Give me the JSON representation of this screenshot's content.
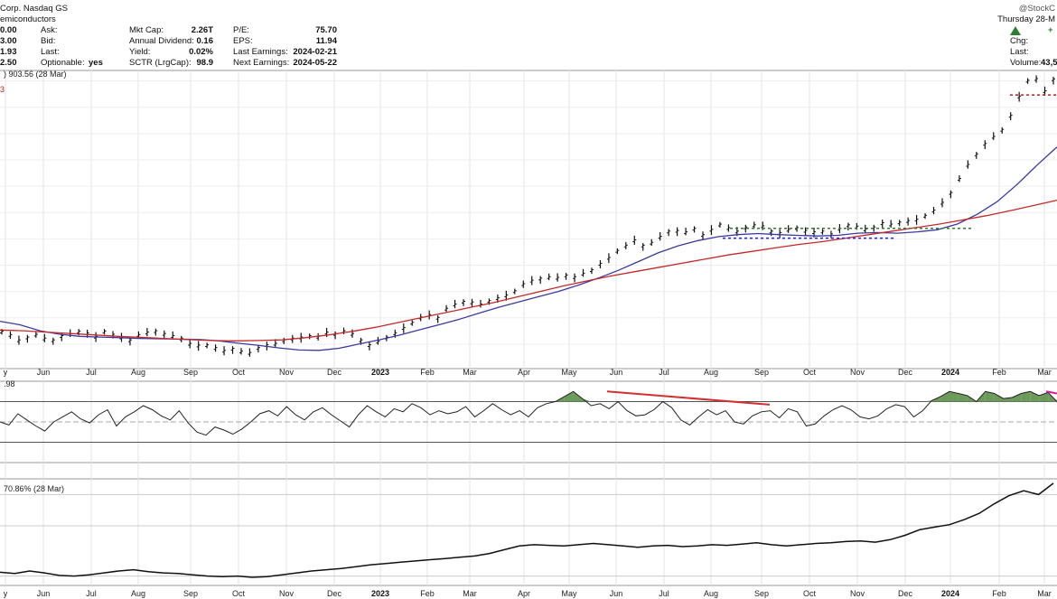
{
  "header": {
    "company": "Corp. Nasdaq GS",
    "industry": "emiconductors",
    "watermark": "@StockC",
    "date": "Thursday 28-M",
    "col1": [
      {
        "label": "Ask:",
        "value": "0.00"
      },
      {
        "label": "Bid:",
        "value": "3.00"
      },
      {
        "label": "Last:",
        "value": "1.93"
      },
      {
        "label": "Optionable:",
        "value": "2.50",
        "extra": "yes"
      }
    ],
    "col2": [
      {
        "label": "Mkt Cap:",
        "value": "2.26T"
      },
      {
        "label": "Annual Dividend:",
        "value": "0.16"
      },
      {
        "label": "Yield:",
        "value": "0.02%"
      },
      {
        "label": "SCTR (LrgCap):",
        "value": "98.9"
      }
    ],
    "col3": [
      {
        "label": "P/E:",
        "value": "75.70"
      },
      {
        "label": "EPS:",
        "value": "11.94"
      },
      {
        "label": "Last Earnings:",
        "value": "2024-02-21"
      },
      {
        "label": "Next Earnings:",
        "value": "2024-05-22"
      }
    ],
    "right": [
      {
        "label": "Chg:",
        "value": "+"
      },
      {
        "label": "Last:",
        "value": ""
      },
      {
        "label": "Volume:",
        "value": "43,5"
      }
    ],
    "up_arrow_color": "#2e7d32"
  },
  "chart_data": {
    "type": "line",
    "months": [
      "y",
      "Jun",
      "Jul",
      "Aug",
      "Sep",
      "Oct",
      "Nov",
      "Dec",
      "2023",
      "Feb",
      "Mar",
      "Apr",
      "May",
      "Jun",
      "Jul",
      "Aug",
      "Sep",
      "Oct",
      "Nov",
      "Dec",
      "2024",
      "Feb",
      "Mar"
    ],
    "panels": [
      {
        "name": "price",
        "label": ") 903.56 (28 Mar)",
        "side_label": "3",
        "series": [
          {
            "kind": "ohlc",
            "color": "#111111",
            "values": [
              185,
              175,
              160,
              168,
              176,
              165,
              160,
              172,
              178,
              185,
              180,
              170,
              185,
              176,
              168,
              160,
              175,
              182,
              186,
              178,
              172,
              165,
              150,
              145,
              146,
              138,
              130,
              136,
              128,
              124,
              138,
              146,
              150,
              160,
              165,
              168,
              172,
              170,
              182,
              178,
              186,
              178,
              160,
              146,
              156,
              168,
              180,
              195,
              210,
              225,
              232,
              224,
              250,
              262,
              270,
              268,
              262,
              272,
              280,
              288,
              300,
              320,
              330,
              336,
              340,
              338,
              345,
              340,
              350,
              360,
              378,
              395,
              415,
              430,
              445,
              430,
              438,
              455,
              470,
              472,
              468,
              478,
              460,
              475,
              490,
              480,
              470,
              482,
              488,
              485,
              470,
              466,
              475,
              480,
              472,
              468,
              470,
              462,
              478,
              488,
              484,
              476,
              482,
              494,
              490,
              496,
              500,
              504,
              515,
              530,
              552,
              580,
              620,
              660,
              690,
              720,
              740,
              760,
              800,
              855,
              900,
              905,
              870,
              904
            ]
          },
          {
            "kind": "ma50",
            "color": "#3a3aa0",
            "values": [
              215,
              205,
              188,
              178,
              172,
              170,
              168,
              166,
              165,
              164,
              163,
              159,
              152,
              146,
              139,
              133,
              132,
              138,
              150,
              162,
              175,
              190,
              205,
              220,
              238,
              255,
              270,
              285,
              300,
              318,
              338,
              360,
              385,
              410,
              430,
              445,
              456,
              462,
              465,
              462,
              460,
              458,
              460,
              466,
              468,
              466,
              470,
              476,
              492,
              520,
              556,
              605,
              660,
              712
            ]
          },
          {
            "kind": "ma200",
            "color": "#c62828",
            "values": [
              190,
              188,
              184,
              180,
              176,
              172,
              169,
              166,
              163,
              160,
              159,
              160,
              162,
              168,
              176,
              186,
              198,
              212,
              226,
              240,
              254,
              268,
              284,
              300,
              316,
              330,
              344,
              356,
              368,
              380,
              392,
              404,
              414,
              424,
              434,
              442,
              452,
              462,
              472,
              482,
              492,
              504,
              516,
              530,
              545,
              560
            ]
          }
        ],
        "annotations": [
          {
            "kind": "resistance",
            "color": "#2e7d32",
            "value": 480
          },
          {
            "kind": "support",
            "color": "#1a1aff",
            "value": 452
          },
          {
            "kind": "breakout",
            "color": "#b71c1c",
            "value": 860
          }
        ]
      },
      {
        "name": "rsi",
        "label": ".98",
        "levels": [
          70,
          50,
          30
        ],
        "values": [
          50,
          47,
          58,
          52,
          46,
          41,
          50,
          55,
          60,
          53,
          49,
          57,
          62,
          46,
          55,
          60,
          66,
          62,
          56,
          52,
          61,
          49,
          40,
          37,
          45,
          42,
          38,
          43,
          50,
          58,
          61,
          56,
          65,
          57,
          52,
          60,
          64,
          57,
          51,
          45,
          57,
          66,
          60,
          55,
          63,
          60,
          68,
          64,
          57,
          61,
          58,
          60,
          65,
          55,
          61,
          68,
          62,
          57,
          61,
          55,
          64,
          68,
          70,
          75,
          80,
          73,
          66,
          68,
          63,
          70,
          61,
          56,
          57,
          62,
          70,
          64,
          52,
          47,
          55,
          62,
          57,
          61,
          50,
          48,
          56,
          60,
          61,
          54,
          63,
          60,
          46,
          48,
          56,
          62,
          66,
          62,
          55,
          53,
          56,
          63,
          67,
          65,
          55,
          61,
          71,
          75,
          80,
          78,
          76,
          70,
          80,
          78,
          73,
          74,
          78,
          80,
          76,
          79,
          70
        ]
      },
      {
        "name": "relative",
        "label": "70.86% (28 Mar)",
        "values": [
          -14,
          -16,
          -12,
          -15,
          -19,
          -20,
          -18,
          -15,
          -12,
          -10,
          -13,
          -15,
          -16,
          -18,
          -20,
          -21,
          -20,
          -22,
          -21,
          -18,
          -15,
          -12,
          -10,
          -8,
          -5,
          -2,
          0,
          2,
          4,
          6,
          8,
          10,
          12,
          16,
          22,
          28,
          30,
          29,
          28,
          30,
          32,
          30,
          28,
          26,
          28,
          29,
          27,
          28,
          30,
          29,
          31,
          33,
          30,
          28,
          30,
          32,
          33,
          35,
          36,
          34,
          38,
          45,
          54,
          58,
          62,
          70,
          80,
          95,
          108,
          116,
          110,
          128
        ]
      }
    ]
  }
}
